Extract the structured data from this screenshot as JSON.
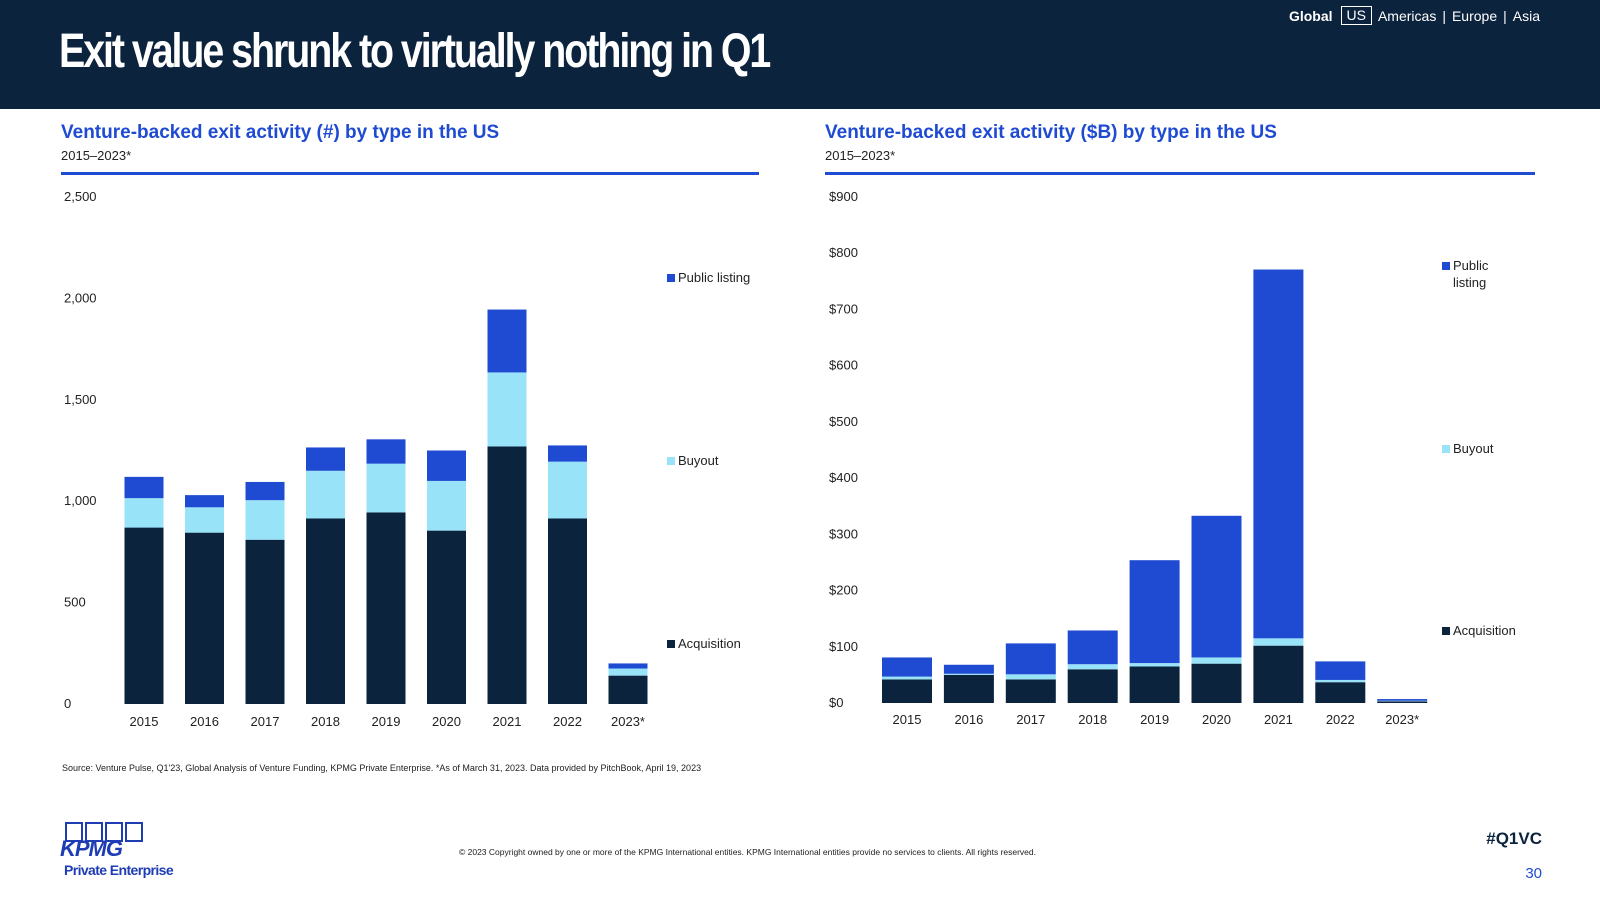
{
  "header": {
    "title": "Exit value shrunk to virtually nothing in Q1",
    "nav": {
      "global": "Global",
      "us": "US",
      "americas": "Americas",
      "europe": "Europe",
      "asia": "Asia",
      "separator": "|"
    }
  },
  "colors": {
    "header_bg": "#0c233e",
    "accent": "#1e4bd2",
    "acquisition": "#0c233e",
    "buyout": "#99e3f9",
    "public_listing": "#1e4bd2"
  },
  "chart_data": [
    {
      "type": "bar",
      "stacked": true,
      "title": "Venture-backed exit activity (#) by type in the US",
      "subtitle": "2015–2023*",
      "categories": [
        "2015",
        "2016",
        "2017",
        "2018",
        "2019",
        "2020",
        "2021",
        "2022",
        "2023*"
      ],
      "ylim": [
        0,
        2500
      ],
      "yticks": [
        0,
        500,
        1000,
        1500,
        2000,
        2500
      ],
      "ytick_labels": [
        "0",
        "500",
        "1,000",
        "1,500",
        "2,000",
        "2,500"
      ],
      "legend_position": "right",
      "series": [
        {
          "name": "Acquisition",
          "color": "#0c233e",
          "values": [
            870,
            845,
            810,
            915,
            945,
            855,
            1270,
            915,
            140
          ]
        },
        {
          "name": "Buyout",
          "color": "#99e3f9",
          "values": [
            145,
            125,
            195,
            235,
            240,
            245,
            365,
            280,
            35
          ]
        },
        {
          "name": "Public listing",
          "color": "#1e4bd2",
          "values": [
            105,
            60,
            90,
            115,
            120,
            150,
            310,
            80,
            25
          ]
        }
      ]
    },
    {
      "type": "bar",
      "stacked": true,
      "title": "Venture-backed exit activity ($B) by type in the US",
      "subtitle": "2015–2023*",
      "categories": [
        "2015",
        "2016",
        "2017",
        "2018",
        "2019",
        "2020",
        "2021",
        "2022",
        "2023*"
      ],
      "ylim": [
        0,
        900
      ],
      "yticks": [
        0,
        100,
        200,
        300,
        400,
        500,
        600,
        700,
        800,
        900
      ],
      "ytick_labels": [
        "$0",
        "$100",
        "$200",
        "$300",
        "$400",
        "$500",
        "$600",
        "$700",
        "$800",
        "$900"
      ],
      "legend_position": "right",
      "series": [
        {
          "name": "Acquisition",
          "color": "#0c233e",
          "values": [
            42,
            50,
            42,
            60,
            65,
            70,
            102,
            37,
            3
          ]
        },
        {
          "name": "Buyout",
          "color": "#99e3f9",
          "values": [
            5,
            2,
            9,
            9,
            6,
            11,
            13,
            4,
            1
          ]
        },
        {
          "name": "Public listing",
          "color": "#1e4bd2",
          "values": [
            34,
            16,
            55,
            60,
            183,
            252,
            656,
            33,
            3
          ]
        }
      ],
      "legend_labels": {
        "Public listing": [
          "Public",
          "listing"
        ]
      }
    }
  ],
  "footer": {
    "source": "Source: Venture Pulse, Q1'23, Global Analysis of Venture Funding, KPMG Private Enterprise. *As of March 31, 2023. Data provided by PitchBook, April 19, 2023",
    "copyright": "© 2023 Copyright owned by one or more of the KPMG International entities. KPMG International entities provide no services to clients. All rights reserved.",
    "hashtag": "#Q1VC",
    "page_number": "30",
    "logo_word": "KPMG",
    "logo_sub": "Private Enterprise"
  }
}
